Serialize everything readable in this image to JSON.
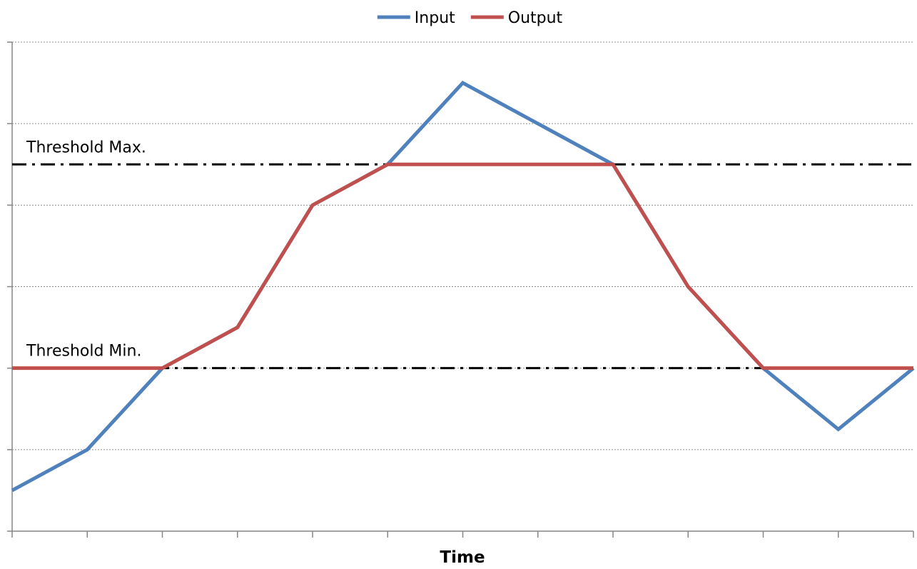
{
  "chart_data": {
    "type": "line",
    "title": "",
    "xlabel": "Time",
    "ylabel": "",
    "x": [
      0,
      1,
      2,
      3,
      4,
      5,
      6,
      7,
      8,
      9,
      10,
      11,
      12
    ],
    "ylim": [
      0,
      6
    ],
    "grid": true,
    "legend_position": "top-center",
    "series": [
      {
        "name": "Input",
        "color": "#4F81BD",
        "values": [
          0.5,
          1,
          2,
          2.5,
          4,
          4.5,
          5.5,
          5,
          4.5,
          3,
          2,
          1.25,
          2
        ]
      },
      {
        "name": "Output",
        "color": "#C0504D",
        "values": [
          2,
          2,
          2,
          2.5,
          4,
          4.5,
          4.5,
          4.5,
          4.5,
          3,
          2,
          2,
          2
        ]
      }
    ],
    "thresholds": [
      {
        "label": "Threshold Max.",
        "value": 4.5,
        "style": "dash-dot",
        "color": "#000000"
      },
      {
        "label": "Threshold Min.",
        "value": 2,
        "style": "dash-dot",
        "color": "#000000"
      }
    ]
  }
}
